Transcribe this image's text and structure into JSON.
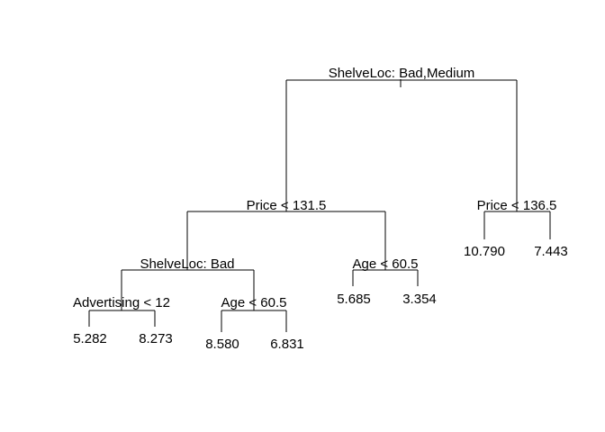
{
  "tree": {
    "root": {
      "split": "ShelveLoc: Bad,Medium",
      "left": {
        "split": "Price < 131.5",
        "left": {
          "split": "ShelveLoc: Bad",
          "left": {
            "split": "Advertising < 12",
            "left": {
              "leaf": "5.282"
            },
            "right": {
              "leaf": "8.273"
            }
          },
          "right": {
            "split": "Age < 60.5",
            "left": {
              "leaf": "8.580"
            },
            "right": {
              "leaf": "6.831"
            }
          }
        },
        "right": {
          "split": "Age < 60.5",
          "left": {
            "leaf": "5.685"
          },
          "right": {
            "leaf": "3.354"
          }
        }
      },
      "right": {
        "split": "Price < 136.5",
        "left": {
          "leaf": "10.790"
        },
        "right": {
          "leaf": "7.443"
        }
      }
    }
  }
}
